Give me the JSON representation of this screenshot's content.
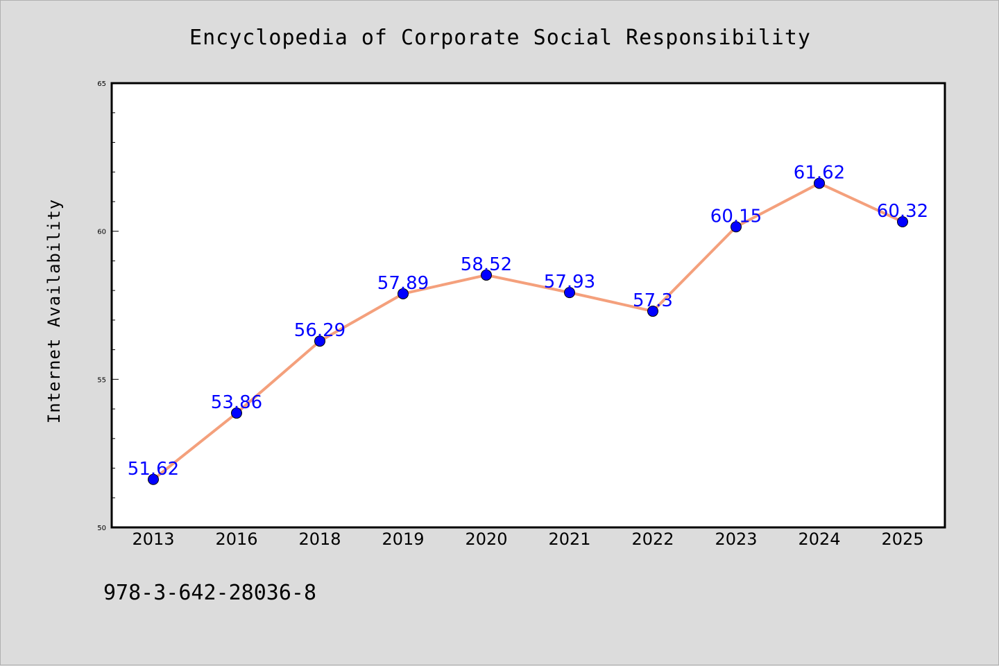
{
  "chart_data": {
    "type": "line",
    "title": "Encyclopedia of Corporate Social Responsibility",
    "xlabel": "",
    "ylabel": "Internet Availability",
    "categories": [
      "2013",
      "2016",
      "2018",
      "2019",
      "2020",
      "2021",
      "2022",
      "2023",
      "2024",
      "2025"
    ],
    "series": [
      {
        "values": [
          51.62,
          53.86,
          56.29,
          57.89,
          58.52,
          57.93,
          57.3,
          60.15,
          61.62,
          60.32
        ],
        "data_labels": [
          "51.62",
          "53.86",
          "56.29",
          "57.89",
          "58.52",
          "57.93",
          "57.3",
          "60.15",
          "61.62",
          "60.32"
        ],
        "line_color": "#f4a07c",
        "marker_color": "#0000ff",
        "label_color": "#0000ff"
      }
    ],
    "ylim": [
      50,
      65
    ],
    "yticks": [
      "50",
      "55",
      "60",
      "65"
    ],
    "grid": false,
    "legend": "none",
    "background": "#dcdcdc",
    "plot_background": "#ffffff"
  },
  "footer": {
    "isbn": "978-3-642-28036-8"
  }
}
